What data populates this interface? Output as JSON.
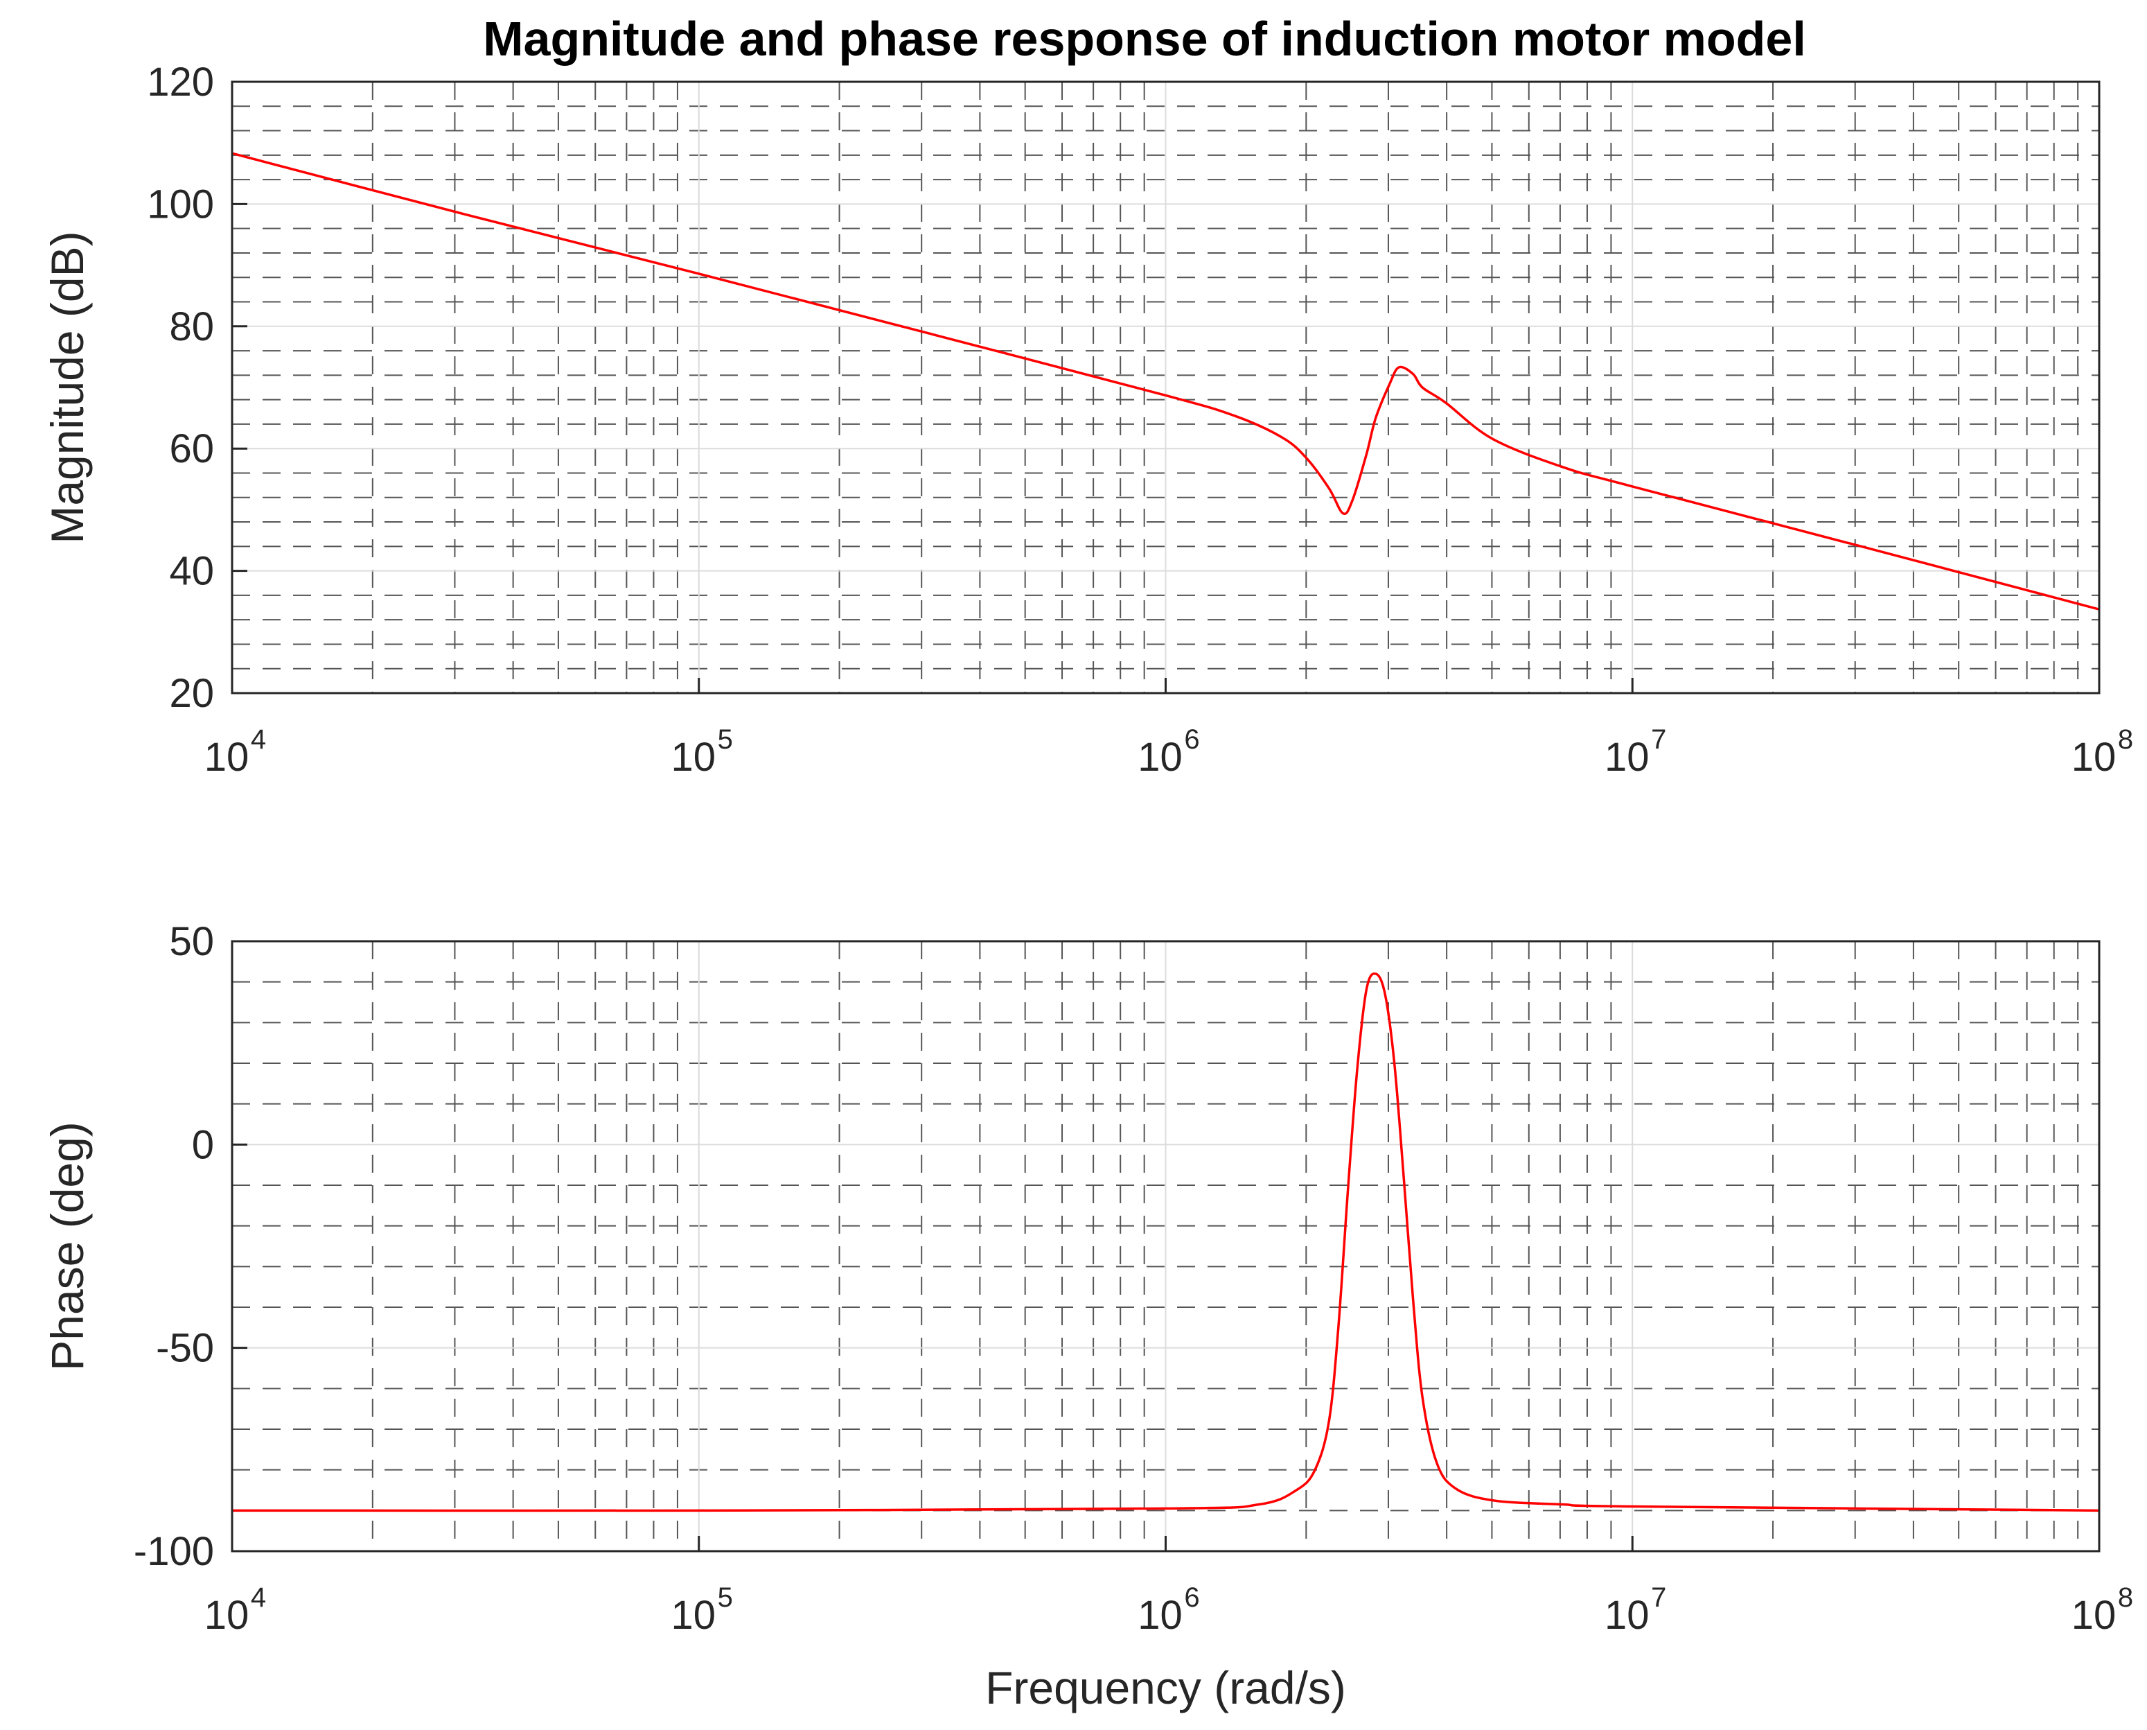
{
  "figure_title": "Magnitude and phase response of induction motor model",
  "chart_data": [
    {
      "type": "line",
      "title": "Magnitude and phase response of induction motor model",
      "xlabel": "",
      "ylabel": "Magnitude (dB)",
      "xscale": "log",
      "xlim": [
        10000,
        100000000
      ],
      "ylim": [
        20,
        120
      ],
      "grid": true,
      "x_ticks": [
        {
          "base": "10",
          "exp": "4"
        },
        {
          "base": "10",
          "exp": "5"
        },
        {
          "base": "10",
          "exp": "6"
        },
        {
          "base": "10",
          "exp": "7"
        },
        {
          "base": "10",
          "exp": "8"
        }
      ],
      "y_ticks": [
        "20",
        "40",
        "60",
        "80",
        "100",
        "120"
      ],
      "series": [
        {
          "name": "Magnitude",
          "color": "#ff0000",
          "x": [
            10000,
            31623,
            100000,
            316228,
            1000000,
            1412538,
            1778279,
            2000000,
            2238721,
            2398833,
            2511886,
            2691535,
            2818383,
            3019952,
            3162278,
            3388442,
            3548134,
            3981072,
            5011872,
            7079458,
            10000000,
            31622777,
            100000000
          ],
          "y": [
            108.3,
            98.3,
            88.6,
            78.7,
            68.7,
            65.3,
            61.8,
            58.5,
            53.5,
            49.4,
            51.5,
            59.0,
            65.0,
            70.6,
            73.3,
            72.2,
            70.0,
            67.5,
            61.6,
            57.0,
            53.8,
            43.8,
            33.7
          ]
        }
      ]
    },
    {
      "type": "line",
      "title": "",
      "xlabel": "Frequency (rad/s)",
      "ylabel": "Phase (deg)",
      "xscale": "log",
      "xlim": [
        10000,
        100000000
      ],
      "ylim": [
        -100,
        50
      ],
      "grid": true,
      "x_ticks": [
        {
          "base": "10",
          "exp": "4"
        },
        {
          "base": "10",
          "exp": "5"
        },
        {
          "base": "10",
          "exp": "6"
        },
        {
          "base": "10",
          "exp": "7"
        },
        {
          "base": "10",
          "exp": "8"
        }
      ],
      "y_ticks": [
        "-100",
        "-50",
        "0",
        "50"
      ],
      "series": [
        {
          "name": "Phase",
          "color": "#ff0000",
          "x": [
            10000,
            100000,
            1000000,
            1584893,
            1905461,
            2089296,
            2238721,
            2344229,
            2454709,
            2570396,
            2691535,
            2818383,
            2951209,
            3090295,
            3235937,
            3388442,
            3548134,
            3801894,
            4168694,
            5011872,
            7079458,
            10000000,
            100000000
          ],
          "y": [
            -90,
            -90,
            -89.5,
            -88.5,
            -85,
            -80,
            -68,
            -45,
            -12,
            18,
            38,
            42,
            37,
            20,
            -8,
            -38,
            -62,
            -78,
            -84.5,
            -87.5,
            -88.5,
            -89,
            -90
          ]
        }
      ]
    }
  ]
}
